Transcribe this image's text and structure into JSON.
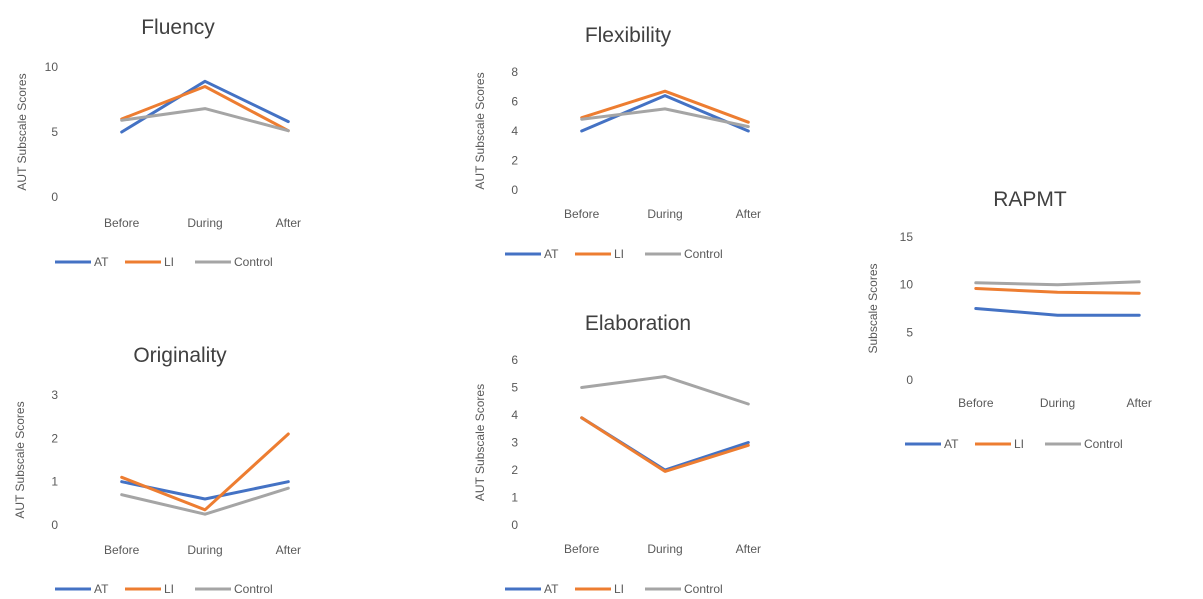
{
  "chart_data": [
    {
      "id": "fluency",
      "type": "line",
      "title": "Fluency",
      "xlabel": "",
      "ylabel": "AUT Subscale Scores",
      "categories": [
        "Before",
        "During",
        "After"
      ],
      "ylim": [
        0,
        10
      ],
      "yticks": [
        0,
        5,
        10
      ],
      "grid": false,
      "legend_position": "bottom",
      "series": [
        {
          "name": "AT",
          "color": "#4472C4",
          "values": [
            5.0,
            8.9,
            5.8
          ]
        },
        {
          "name": "LI",
          "color": "#ED7D31",
          "values": [
            6.0,
            8.5,
            5.1
          ]
        },
        {
          "name": "Control",
          "color": "#A5A5A5",
          "values": [
            5.9,
            6.8,
            5.1
          ]
        }
      ]
    },
    {
      "id": "flexibility",
      "type": "line",
      "title": "Flexibility",
      "xlabel": "",
      "ylabel": "AUT Subscale Scores",
      "categories": [
        "Before",
        "During",
        "After"
      ],
      "ylim": [
        0,
        8
      ],
      "yticks": [
        0,
        2,
        4,
        6,
        8
      ],
      "grid": false,
      "legend_position": "bottom",
      "series": [
        {
          "name": "AT",
          "color": "#4472C4",
          "values": [
            4.0,
            6.4,
            4.0
          ]
        },
        {
          "name": "LI",
          "color": "#ED7D31",
          "values": [
            4.9,
            6.7,
            4.6
          ]
        },
        {
          "name": "Control",
          "color": "#A5A5A5",
          "values": [
            4.8,
            5.5,
            4.3
          ]
        }
      ]
    },
    {
      "id": "rapmt",
      "type": "line",
      "title": "RAPMT",
      "xlabel": "",
      "ylabel": "Subscale Scores",
      "categories": [
        "Before",
        "During",
        "After"
      ],
      "ylim": [
        0,
        15
      ],
      "yticks": [
        0,
        5,
        10,
        15
      ],
      "grid": false,
      "legend_position": "bottom",
      "series": [
        {
          "name": "AT",
          "color": "#4472C4",
          "values": [
            7.5,
            6.8,
            6.8
          ]
        },
        {
          "name": "LI",
          "color": "#ED7D31",
          "values": [
            9.6,
            9.2,
            9.1
          ]
        },
        {
          "name": "Control",
          "color": "#A5A5A5",
          "values": [
            10.2,
            10.0,
            10.3
          ]
        }
      ]
    },
    {
      "id": "originality",
      "type": "line",
      "title": "Originality",
      "xlabel": "",
      "ylabel": "AUT Subscale Scores",
      "categories": [
        "Before",
        "During",
        "After"
      ],
      "ylim": [
        0,
        3
      ],
      "yticks": [
        0,
        1,
        2,
        3
      ],
      "grid": false,
      "legend_position": "bottom",
      "series": [
        {
          "name": "AT",
          "color": "#4472C4",
          "values": [
            1.0,
            0.6,
            1.0
          ]
        },
        {
          "name": "LI",
          "color": "#ED7D31",
          "values": [
            1.1,
            0.35,
            2.1
          ]
        },
        {
          "name": "Control",
          "color": "#A5A5A5",
          "values": [
            0.7,
            0.25,
            0.85
          ]
        }
      ]
    },
    {
      "id": "elaboration",
      "type": "line",
      "title": "Elaboration",
      "xlabel": "",
      "ylabel": "AUT Subscale Scores",
      "categories": [
        "Before",
        "During",
        "After"
      ],
      "ylim": [
        0,
        6
      ],
      "yticks": [
        0,
        1,
        2,
        3,
        4,
        5,
        6
      ],
      "grid": false,
      "legend_position": "bottom",
      "series": [
        {
          "name": "AT",
          "color": "#4472C4",
          "values": [
            3.9,
            2.0,
            3.0
          ]
        },
        {
          "name": "LI",
          "color": "#ED7D31",
          "values": [
            3.9,
            1.95,
            2.9
          ]
        },
        {
          "name": "Control",
          "color": "#A5A5A5",
          "values": [
            5.0,
            5.4,
            4.4
          ]
        }
      ]
    }
  ]
}
